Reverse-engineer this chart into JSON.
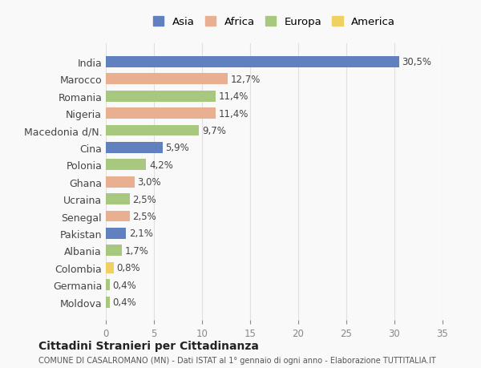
{
  "countries": [
    "India",
    "Marocco",
    "Romania",
    "Nigeria",
    "Macedonia d/N.",
    "Cina",
    "Polonia",
    "Ghana",
    "Ucraina",
    "Senegal",
    "Pakistan",
    "Albania",
    "Colombia",
    "Germania",
    "Moldova"
  ],
  "values": [
    30.5,
    12.7,
    11.4,
    11.4,
    9.7,
    5.9,
    4.2,
    3.0,
    2.5,
    2.5,
    2.1,
    1.7,
    0.8,
    0.4,
    0.4
  ],
  "labels": [
    "30,5%",
    "12,7%",
    "11,4%",
    "11,4%",
    "9,7%",
    "5,9%",
    "4,2%",
    "3,0%",
    "2,5%",
    "2,5%",
    "2,1%",
    "1,7%",
    "0,8%",
    "0,4%",
    "0,4%"
  ],
  "continents": [
    "Asia",
    "Africa",
    "Europa",
    "Africa",
    "Europa",
    "Asia",
    "Europa",
    "Africa",
    "Europa",
    "Africa",
    "Asia",
    "Europa",
    "America",
    "Europa",
    "Europa"
  ],
  "continent_colors": {
    "Asia": "#6080c0",
    "Africa": "#e8b090",
    "Europa": "#a8c880",
    "America": "#f0d060"
  },
  "legend_order": [
    "Asia",
    "Africa",
    "Europa",
    "America"
  ],
  "title": "Cittadini Stranieri per Cittadinanza",
  "subtitle": "COMUNE DI CASALROMANO (MN) - Dati ISTAT al 1° gennaio di ogni anno - Elaborazione TUTTITALIA.IT",
  "xlim": [
    0,
    35
  ],
  "xticks": [
    0,
    5,
    10,
    15,
    20,
    25,
    30,
    35
  ],
  "background_color": "#f9f9f9",
  "grid_color": "#e0e0e0"
}
